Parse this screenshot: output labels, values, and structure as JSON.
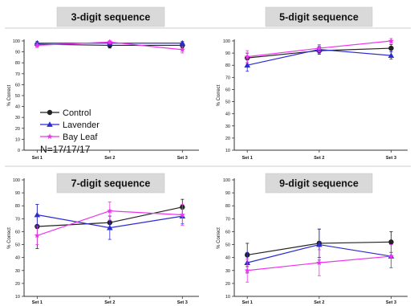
{
  "colors": {
    "Control": "#222222",
    "Lavender": "#2b2bd6",
    "Bay Leaf": "#ee33ee",
    "title_box": "#d9d9d9",
    "axis": "#333333"
  },
  "legend": {
    "entries": [
      "Control",
      "Lavender",
      "Bay Leaf"
    ],
    "markers": [
      "circle",
      "triangle",
      "star"
    ],
    "note": "N=17/17/17"
  },
  "chart_data": [
    {
      "type": "line",
      "title": "3-digit sequence",
      "xlabel": "",
      "ylabel": "% Correct",
      "ylim": [
        0,
        100
      ],
      "yticks": [
        0,
        10,
        20,
        30,
        40,
        50,
        60,
        70,
        80,
        90,
        100
      ],
      "categories": [
        "Set 1",
        "Set 2",
        "Set 3"
      ],
      "grid": false,
      "series": [
        {
          "name": "Control",
          "values": [
            97,
            96,
            96
          ],
          "errors": [
            1.5,
            2.5,
            2.5
          ]
        },
        {
          "name": "Lavender",
          "values": [
            98,
            98,
            98
          ],
          "errors": [
            1.5,
            1.5,
            1.5
          ]
        },
        {
          "name": "Bay Leaf",
          "values": [
            96,
            99,
            92
          ],
          "errors": [
            2,
            1.5,
            3
          ]
        }
      ]
    },
    {
      "type": "line",
      "title": "5-digit sequence",
      "xlabel": "",
      "ylabel": "% Correct",
      "ylim": [
        10,
        100
      ],
      "yticks": [
        10,
        20,
        30,
        40,
        50,
        60,
        70,
        80,
        90,
        100
      ],
      "categories": [
        "Set 1",
        "Set 2",
        "Set 3"
      ],
      "grid": false,
      "series": [
        {
          "name": "Control",
          "values": [
            86,
            92,
            94
          ],
          "errors": [
            4,
            3,
            3
          ]
        },
        {
          "name": "Lavender",
          "values": [
            80,
            93,
            88
          ],
          "errors": [
            5,
            3,
            3
          ]
        },
        {
          "name": "Bay Leaf",
          "values": [
            87,
            94,
            100
          ],
          "errors": [
            5,
            3,
            2
          ]
        }
      ]
    },
    {
      "type": "line",
      "title": "7-digit sequence",
      "xlabel": "",
      "ylabel": "% Correct",
      "ylim": [
        10,
        100
      ],
      "yticks": [
        10,
        20,
        30,
        40,
        50,
        60,
        70,
        80,
        90,
        100
      ],
      "categories": [
        "Set 1",
        "Set 2",
        "Set 3"
      ],
      "grid": false,
      "series": [
        {
          "name": "Control",
          "values": [
            64,
            67,
            79
          ],
          "errors": [
            17,
            5,
            6
          ]
        },
        {
          "name": "Lavender",
          "values": [
            73,
            63,
            72
          ],
          "errors": [
            8,
            9,
            6
          ]
        },
        {
          "name": "Bay Leaf",
          "values": [
            57,
            76,
            73
          ],
          "errors": [
            7,
            7,
            8
          ]
        }
      ]
    },
    {
      "type": "line",
      "title": "9-digit sequence",
      "xlabel": "",
      "ylabel": "% Correct",
      "ylim": [
        10,
        100
      ],
      "yticks": [
        10,
        20,
        30,
        40,
        50,
        60,
        70,
        80,
        90,
        100
      ],
      "categories": [
        "Set 1",
        "Set 2",
        "Set 3"
      ],
      "grid": false,
      "series": [
        {
          "name": "Control",
          "values": [
            42,
            51,
            52
          ],
          "errors": [
            9,
            11,
            8
          ]
        },
        {
          "name": "Lavender",
          "values": [
            36,
            50,
            41
          ],
          "errors": [
            8,
            12,
            9
          ]
        },
        {
          "name": "Bay Leaf",
          "values": [
            30,
            36,
            41
          ],
          "errors": [
            9,
            10,
            9
          ]
        }
      ]
    }
  ]
}
